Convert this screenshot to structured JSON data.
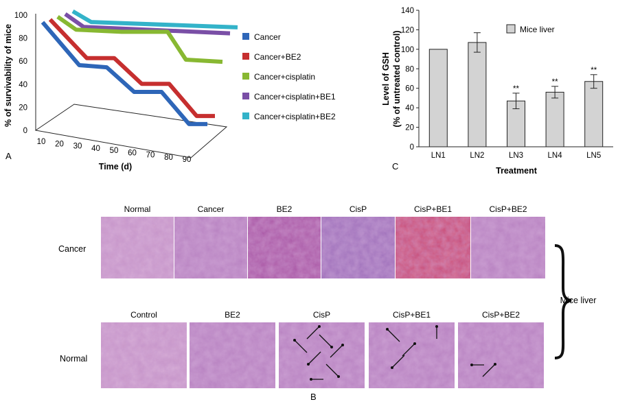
{
  "chart_data": [
    {
      "type": "line",
      "panel_label": "A",
      "ylabel": "% of survivability of mice",
      "xlabel": "Time (d)",
      "yticks": [
        0,
        20,
        40,
        60,
        80,
        100
      ],
      "xticks": [
        10,
        20,
        30,
        40,
        50,
        60,
        70,
        80,
        90
      ],
      "ylim": [
        0,
        100
      ],
      "legend_position": "right",
      "series": [
        {
          "name": "Cancer",
          "color": "#2e66b8",
          "x": [
            10,
            30,
            45,
            60,
            75,
            90,
            100
          ],
          "y": [
            100,
            60,
            58,
            35,
            35,
            5,
            5
          ]
        },
        {
          "name": "Cancer+BE2",
          "color": "#c62f2f",
          "x": [
            10,
            30,
            45,
            60,
            75,
            90,
            100
          ],
          "y": [
            100,
            64,
            64,
            40,
            40,
            10,
            10
          ]
        },
        {
          "name": "Cancer+cisplatin",
          "color": "#88b832",
          "x": [
            10,
            20,
            45,
            70,
            80,
            100
          ],
          "y": [
            100,
            88,
            86,
            86,
            60,
            58
          ]
        },
        {
          "name": "Cancer+cisplatin+BE1",
          "color": "#7a4fa6",
          "x": [
            10,
            20,
            100
          ],
          "y": [
            100,
            88,
            82
          ]
        },
        {
          "name": "Cancer+cisplatin+BE2",
          "color": "#33b3c9",
          "x": [
            10,
            20,
            100
          ],
          "y": [
            100,
            90,
            85
          ]
        }
      ]
    },
    {
      "type": "bar",
      "panel_label": "C",
      "categories": [
        "LN1",
        "LN2",
        "LN3",
        "LN4",
        "LN5"
      ],
      "values": [
        100,
        107,
        47,
        56,
        67
      ],
      "errors": [
        0,
        10,
        8,
        6,
        7
      ],
      "annotations": [
        "",
        "",
        "**",
        "**",
        "**"
      ],
      "series_name": "Mice liver",
      "bar_color": "#d3d3d3",
      "ylabel_line1": "Level of GSH",
      "ylabel_line2": "(% of untreated control)",
      "xlabel": "Treatment",
      "yticks": [
        0,
        20,
        40,
        60,
        80,
        100,
        120,
        140
      ],
      "ylim": [
        0,
        140
      ],
      "legend_position": "top-right"
    }
  ],
  "histology": {
    "panel_label": "B",
    "cancer_row_label": "Cancer",
    "normal_row_label": "Normal",
    "cancer_row_titles": [
      "Normal",
      "Cancer",
      "BE2",
      "CisP",
      "CisP+BE1",
      "CisP+BE2"
    ],
    "normal_row_titles": [
      "Control",
      "BE2",
      "CisP",
      "CisP+BE1",
      "CisP+BE2"
    ],
    "brace_label": "Mice liver",
    "stain_colors": [
      "#c896c8",
      "#b67fbf",
      "#a64fa0",
      "#9a6bb8",
      "#c8446e"
    ]
  }
}
